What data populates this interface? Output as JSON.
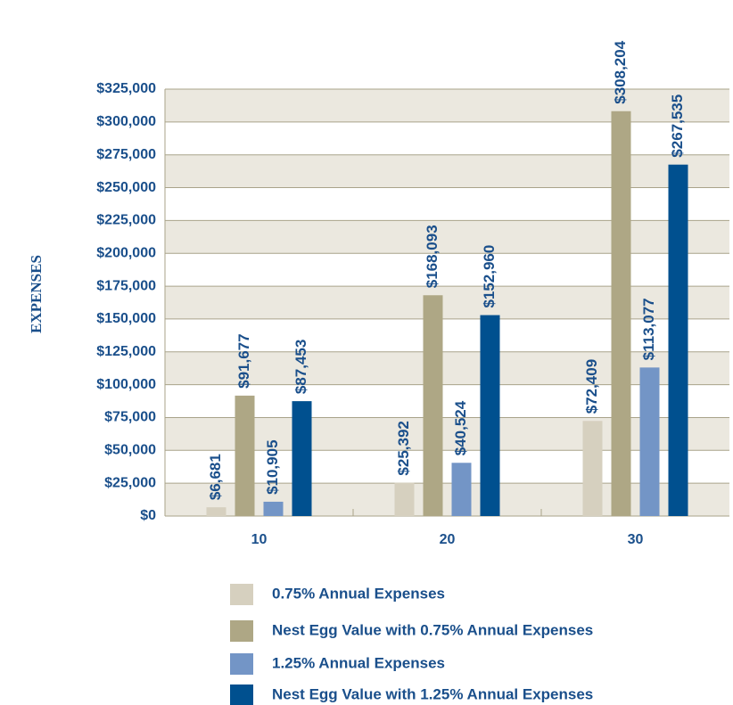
{
  "chart_data": {
    "type": "bar",
    "y_axis_label": "EXPENSES",
    "categories": [
      "10",
      "20",
      "30"
    ],
    "series": [
      {
        "name": "0.75% Annual Expenses",
        "color": "#d6d0bf",
        "values": [
          6681,
          25392,
          72409
        ],
        "value_labels": [
          "$6,681",
          "$25,392",
          "$72,409"
        ]
      },
      {
        "name": "Nest Egg Value with 0.75% Annual Expenses",
        "color": "#aea785",
        "values": [
          91677,
          168093,
          308204
        ],
        "value_labels": [
          "$91,677",
          "$168,093",
          "$308,204"
        ]
      },
      {
        "name": "1.25% Annual Expenses",
        "color": "#7395c6",
        "values": [
          10905,
          40524,
          113077
        ],
        "value_labels": [
          "$10,905",
          "$40,524",
          "$113,077"
        ]
      },
      {
        "name": "Nest Egg Value with 1.25% Annual Expenses",
        "color": "#00508f",
        "values": [
          87453,
          152960,
          267535
        ],
        "value_labels": [
          "$87,453",
          "$152,960",
          "$267,535"
        ]
      }
    ],
    "ylim": [
      0,
      325000
    ],
    "yticks": [
      {
        "value": 0,
        "label": "$0"
      },
      {
        "value": 25000,
        "label": "$25,000"
      },
      {
        "value": 50000,
        "label": "$50,000"
      },
      {
        "value": 75000,
        "label": "$75,000"
      },
      {
        "value": 100000,
        "label": "$100,000"
      },
      {
        "value": 125000,
        "label": "$125,000"
      },
      {
        "value": 150000,
        "label": "$150,000"
      },
      {
        "value": 175000,
        "label": "$175,000"
      },
      {
        "value": 200000,
        "label": "$200,000"
      },
      {
        "value": 225000,
        "label": "$225,000"
      },
      {
        "value": 250000,
        "label": "$250,000"
      },
      {
        "value": 275000,
        "label": "$275,000"
      },
      {
        "value": 300000,
        "label": "$300,000"
      },
      {
        "value": 325000,
        "label": "$325,000"
      }
    ],
    "grid": true,
    "legend": "bottom"
  }
}
